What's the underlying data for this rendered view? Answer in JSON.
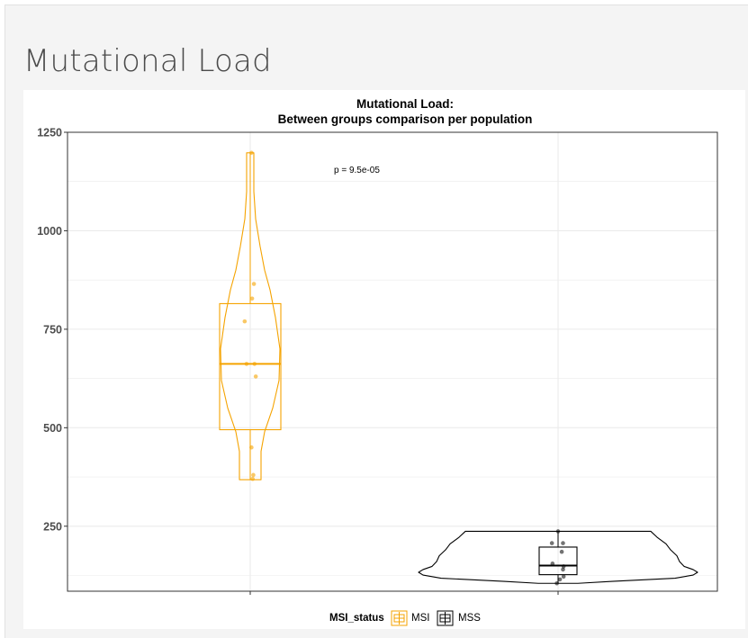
{
  "page": {
    "title": "Mutational Load"
  },
  "chart_data": {
    "type": "violin",
    "title_line1": "Mutational Load:",
    "title_line2": "Between groups comparison per population",
    "ylim": [
      85,
      1250
    ],
    "yticks": [
      250,
      500,
      750,
      1000,
      1250
    ],
    "grid": true,
    "annotation": "p = 9.5e-05",
    "legend": {
      "title": "MSI_status",
      "position": "bottom",
      "items": [
        "MSI",
        "MSS"
      ]
    },
    "colors": {
      "MSI": "#f5a300",
      "MSS": "#000000",
      "grid": "#ebebeb",
      "axis": "#333333"
    },
    "series": [
      {
        "name": "MSI",
        "violin_profile": [
          [
            368,
            12
          ],
          [
            380,
            12
          ],
          [
            400,
            12
          ],
          [
            440,
            12
          ],
          [
            490,
            16
          ],
          [
            550,
            25
          ],
          [
            620,
            32
          ],
          [
            700,
            33
          ],
          [
            780,
            28
          ],
          [
            850,
            22
          ],
          [
            900,
            16
          ],
          [
            960,
            11
          ],
          [
            1030,
            6
          ],
          [
            1100,
            4
          ],
          [
            1150,
            4
          ],
          [
            1198,
            4
          ]
        ],
        "box": {
          "q1": 495,
          "median": 662,
          "q3": 815,
          "whisker_low": 368,
          "whisker_high": 1198
        },
        "points": [
          {
            "y": 1198,
            "jitter": 0.02
          },
          {
            "y": 865,
            "jitter": 0.06
          },
          {
            "y": 828,
            "jitter": 0.03
          },
          {
            "y": 770,
            "jitter": -0.09
          },
          {
            "y": 662,
            "jitter": -0.06
          },
          {
            "y": 662,
            "jitter": 0.07
          },
          {
            "y": 630,
            "jitter": 0.09
          },
          {
            "y": 450,
            "jitter": 0.02
          },
          {
            "y": 380,
            "jitter": 0.05
          },
          {
            "y": 370,
            "jitter": 0.04
          }
        ]
      },
      {
        "name": "MSS",
        "violin_profile": [
          [
            105,
            22
          ],
          [
            110,
            60
          ],
          [
            118,
            130
          ],
          [
            126,
            150
          ],
          [
            133,
            155
          ],
          [
            140,
            150
          ],
          [
            148,
            140
          ],
          [
            160,
            135
          ],
          [
            175,
            132
          ],
          [
            190,
            125
          ],
          [
            205,
            120
          ],
          [
            222,
            110
          ],
          [
            237,
            103
          ]
        ],
        "box": {
          "q1": 127,
          "median": 150,
          "q3": 197,
          "whisker_low": 105,
          "whisker_high": 237
        },
        "points": [
          {
            "y": 237,
            "jitter": 0.0
          },
          {
            "y": 207,
            "jitter": -0.1
          },
          {
            "y": 207,
            "jitter": 0.08
          },
          {
            "y": 185,
            "jitter": 0.06
          },
          {
            "y": 155,
            "jitter": -0.09
          },
          {
            "y": 148,
            "jitter": 0.09
          },
          {
            "y": 140,
            "jitter": 0.08
          },
          {
            "y": 122,
            "jitter": 0.09
          },
          {
            "y": 115,
            "jitter": 0.03
          },
          {
            "y": 105,
            "jitter": -0.02
          }
        ]
      }
    ]
  }
}
